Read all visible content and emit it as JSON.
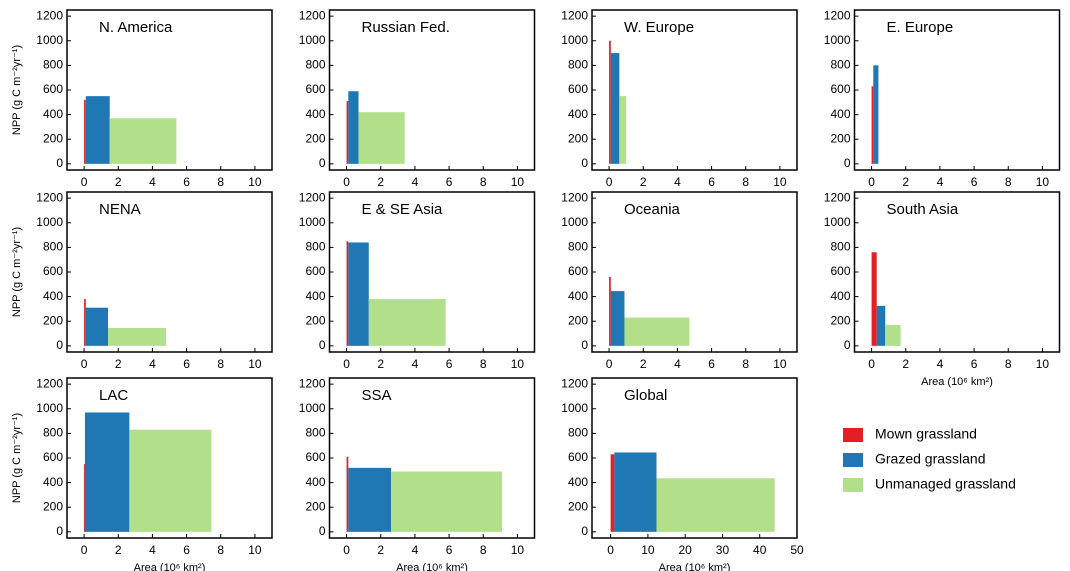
{
  "chart_data": [
    {
      "type": "bar",
      "title": "N. America",
      "y_label": "NPP (g C m⁻²yr⁻¹)",
      "widths": [
        0.1,
        1.4,
        3.9
      ],
      "values": [
        520,
        550,
        370
      ],
      "xlim": [
        -1,
        11
      ],
      "xticks": [
        0,
        2,
        4,
        6,
        8,
        10
      ],
      "ylim": [
        -50,
        1250
      ],
      "yticks": [
        0,
        200,
        400,
        600,
        800,
        1000,
        1200
      ]
    },
    {
      "type": "bar",
      "title": "Russian Fed.",
      "widths": [
        0.1,
        0.6,
        2.7
      ],
      "values": [
        510,
        590,
        420
      ],
      "xlim": [
        -1,
        11
      ],
      "xticks": [
        0,
        2,
        4,
        6,
        8,
        10
      ],
      "ylim": [
        -50,
        1250
      ],
      "yticks": [
        0,
        200,
        400,
        600,
        800,
        1000,
        1200
      ]
    },
    {
      "type": "bar",
      "title": "W. Europe",
      "widths": [
        0.1,
        0.5,
        0.4
      ],
      "values": [
        1000,
        900,
        550
      ],
      "xlim": [
        -1,
        11
      ],
      "xticks": [
        0,
        2,
        4,
        6,
        8,
        10
      ],
      "ylim": [
        -50,
        1250
      ],
      "yticks": [
        0,
        200,
        400,
        600,
        800,
        1000,
        1200
      ]
    },
    {
      "type": "bar",
      "title": "E. Europe",
      "widths": [
        0.1,
        0.3,
        null
      ],
      "values": [
        630,
        800,
        null
      ],
      "xlim": [
        -1,
        11
      ],
      "xticks": [
        0,
        2,
        4,
        6,
        8,
        10
      ],
      "ylim": [
        -50,
        1250
      ],
      "yticks": [
        0,
        200,
        400,
        600,
        800,
        1000,
        1200
      ]
    },
    {
      "type": "bar",
      "title": "NENA",
      "y_label": "NPP (g C m⁻²yr⁻¹)",
      "widths": [
        0.1,
        1.3,
        3.4
      ],
      "values": [
        380,
        310,
        145
      ],
      "xlim": [
        -1,
        11
      ],
      "xticks": [
        0,
        2,
        4,
        6,
        8,
        10
      ],
      "ylim": [
        -50,
        1250
      ],
      "yticks": [
        0,
        200,
        400,
        600,
        800,
        1000,
        1200
      ]
    },
    {
      "type": "bar",
      "title": "E & SE Asia",
      "widths": [
        0.1,
        1.2,
        4.5
      ],
      "values": [
        850,
        840,
        380
      ],
      "xlim": [
        -1,
        11
      ],
      "xticks": [
        0,
        2,
        4,
        6,
        8,
        10
      ],
      "ylim": [
        -50,
        1250
      ],
      "yticks": [
        0,
        200,
        400,
        600,
        800,
        1000,
        1200
      ]
    },
    {
      "type": "bar",
      "title": "Oceania",
      "widths": [
        0.1,
        0.8,
        3.8
      ],
      "values": [
        560,
        445,
        230
      ],
      "xlim": [
        -1,
        11
      ],
      "xticks": [
        0,
        2,
        4,
        6,
        8,
        10
      ],
      "ylim": [
        -50,
        1250
      ],
      "yticks": [
        0,
        200,
        400,
        600,
        800,
        1000,
        1200
      ]
    },
    {
      "type": "bar",
      "title": "South Asia",
      "x_label": "Area (10⁶ km²)",
      "widths": [
        0.3,
        0.5,
        0.9
      ],
      "values": [
        760,
        325,
        170
      ],
      "xlim": [
        -1,
        11
      ],
      "xticks": [
        0,
        2,
        4,
        6,
        8,
        10
      ],
      "ylim": [
        -50,
        1250
      ],
      "yticks": [
        0,
        200,
        400,
        600,
        800,
        1000,
        1200
      ]
    },
    {
      "type": "bar",
      "title": "LAC",
      "y_label": "NPP (g C m⁻²yr⁻¹)",
      "x_label": "Area (10⁶ km²)",
      "widths": [
        0.05,
        2.6,
        4.8
      ],
      "values": [
        550,
        970,
        830
      ],
      "xlim": [
        -1,
        11
      ],
      "xticks": [
        0,
        2,
        4,
        6,
        8,
        10
      ],
      "ylim": [
        -50,
        1250
      ],
      "yticks": [
        0,
        200,
        400,
        600,
        800,
        1000,
        1200
      ]
    },
    {
      "type": "bar",
      "title": "SSA",
      "x_label": "Area (10⁶ km²)",
      "widths": [
        0.1,
        2.5,
        6.5
      ],
      "values": [
        610,
        520,
        490
      ],
      "xlim": [
        -1,
        11
      ],
      "xticks": [
        0,
        2,
        4,
        6,
        8,
        10
      ],
      "ylim": [
        -50,
        1250
      ],
      "yticks": [
        0,
        200,
        400,
        600,
        800,
        1000,
        1200
      ]
    },
    {
      "type": "bar",
      "title": "Global",
      "x_label": "Area (10⁶ km²)",
      "widths": [
        1,
        11.3,
        31.7
      ],
      "values": [
        630,
        645,
        435
      ],
      "xlim": [
        -5,
        50
      ],
      "xticks": [
        0,
        10,
        20,
        30,
        40,
        50
      ],
      "ylim": [
        -50,
        1250
      ],
      "yticks": [
        0,
        200,
        400,
        600,
        800,
        1000,
        1200
      ]
    }
  ],
  "legend": {
    "position": "right",
    "items": [
      {
        "name": "Mown grassland",
        "color": "#e31e24"
      },
      {
        "name": "Grazed grassland",
        "color": "#1f78b4"
      },
      {
        "name": "Unmanaged grassland",
        "color": "#b2df8a"
      }
    ]
  }
}
